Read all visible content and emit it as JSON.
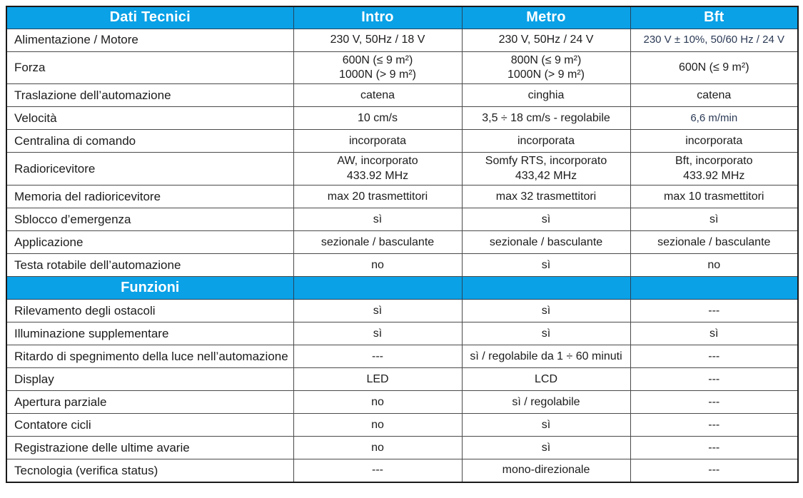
{
  "colors": {
    "accent": "#0aa1e6",
    "header_text": "#ffffff",
    "body_text": "#1c1c1c",
    "alt_text": "#2b3a55",
    "grid_line": "#4a4a4a",
    "outer_border": "#1a1a1a"
  },
  "header": {
    "cols": [
      "Dati Tecnici",
      "Intro",
      "Metro",
      "Bft"
    ]
  },
  "rows": [
    {
      "label": "Alimentazione / Motore",
      "cells": [
        "230 V, 50Hz / 18 V",
        "230 V, 50Hz / 24 V",
        "230 V ± 10%, 50/60 Hz / 24 V"
      ],
      "alt": [
        2
      ]
    },
    {
      "label": "Forza",
      "cells": [
        "600N (≤ 9 m²)\n1000N (> 9 m²)",
        "800N (≤ 9 m²)\n1000N (> 9 m²)",
        "600N (≤ 9 m²)"
      ],
      "tall": true
    },
    {
      "label": "Traslazione dell’automazione",
      "cells": [
        "catena",
        "cinghia",
        "catena"
      ]
    },
    {
      "label": "Velocità",
      "cells": [
        "10 cm/s",
        "3,5 ÷ 18 cm/s - regolabile",
        "6,6 m/min"
      ],
      "alt": [
        2
      ]
    },
    {
      "label": "Centralina di comando",
      "cells": [
        "incorporata",
        "incorporata",
        "incorporata"
      ]
    },
    {
      "label": "Radioricevitore",
      "cells": [
        "AW, incorporato\n433.92 MHz",
        "Somfy RTS, incorporato\n433,42 MHz",
        "Bft, incorporato\n433.92 MHz"
      ],
      "tall": true
    },
    {
      "label": "Memoria del radioricevitore",
      "cells": [
        "max 20 trasmettitori",
        "max 32 trasmettitori",
        "max 10 trasmettitori"
      ]
    },
    {
      "label": "Sblocco d’emergenza",
      "cells": [
        "sì",
        "sì",
        "sì"
      ]
    },
    {
      "label": "Applicazione",
      "cells": [
        "sezionale / basculante",
        "sezionale / basculante",
        "sezionale / basculante"
      ]
    },
    {
      "label": "Testa rotabile dell’automazione",
      "cells": [
        "no",
        "sì",
        "no"
      ]
    },
    {
      "section": "Funzioni"
    },
    {
      "label": "Rilevamento degli ostacoli",
      "cells": [
        "sì",
        "sì",
        "---"
      ]
    },
    {
      "label": "Illuminazione supplementare",
      "cells": [
        "sì",
        "sì",
        "sì"
      ]
    },
    {
      "label": "Ritardo di spegnimento della luce nell’automazione",
      "cells": [
        "---",
        "sì / regolabile da 1 ÷ 60 minuti",
        "---"
      ]
    },
    {
      "label": "Display",
      "cells": [
        "LED",
        "LCD",
        "---"
      ]
    },
    {
      "label": "Apertura parziale",
      "cells": [
        "no",
        "sì / regolabile",
        "---"
      ]
    },
    {
      "label": "Contatore cicli",
      "cells": [
        "no",
        "sì",
        "---"
      ]
    },
    {
      "label": "Registrazione delle ultime avarie",
      "cells": [
        "no",
        "sì",
        "---"
      ]
    },
    {
      "label": "Tecnologia (verifica status)",
      "cells": [
        "---",
        "mono-direzionale",
        "---"
      ]
    }
  ]
}
